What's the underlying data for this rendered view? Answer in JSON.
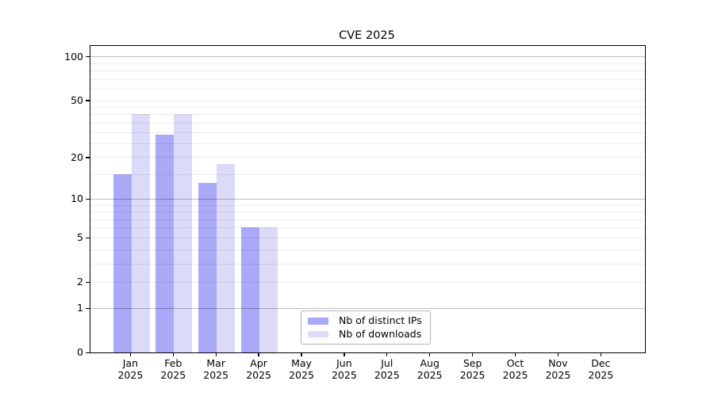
{
  "chart_data": {
    "type": "bar",
    "title": "CVE 2025",
    "categories": [
      "Jan",
      "Feb",
      "Mar",
      "Apr",
      "May",
      "Jun",
      "Jul",
      "Aug",
      "Sep",
      "Oct",
      "Nov",
      "Dec"
    ],
    "category_year_sublabel": "2025",
    "series": [
      {
        "name": "Nb of distinct IPs",
        "color": "#a9a9f8",
        "values": [
          15,
          29,
          13,
          6,
          null,
          null,
          null,
          null,
          null,
          null,
          null,
          null
        ]
      },
      {
        "name": "Nb of downloads",
        "color": "#dbdbf9",
        "values": [
          40,
          40,
          18,
          6,
          null,
          null,
          null,
          null,
          null,
          null,
          null,
          null
        ]
      }
    ],
    "xlabel": "",
    "ylabel": "",
    "y_axis": {
      "scale": "log10(value+1)",
      "range": [
        0,
        118
      ],
      "tick_labels": [
        "100",
        "50",
        "20",
        "10",
        "5",
        "2",
        "1",
        "0"
      ],
      "tick_values": [
        100,
        50,
        20,
        10,
        5,
        2,
        1,
        0
      ],
      "major_gridlines": [
        100,
        10,
        1
      ],
      "minor_gridlines": [
        2,
        3,
        4,
        5,
        6,
        7,
        8,
        9,
        15,
        20,
        25,
        30,
        35,
        40,
        45,
        50,
        60,
        70,
        80,
        90
      ]
    },
    "legend": {
      "entries": [
        "Nb of distinct IPs",
        "Nb of downloads"
      ],
      "position": "lower center"
    },
    "grid": true
  },
  "colors": {
    "distinct_ips_bar": "#a9a9f8",
    "downloads_bar": "#dbdbf9",
    "major_gridline": "#bdbdbd",
    "minor_gridline": "#ededed",
    "axis_spine": "#000000",
    "legend_border": "#b3b3b3",
    "background": "#ffffff"
  }
}
